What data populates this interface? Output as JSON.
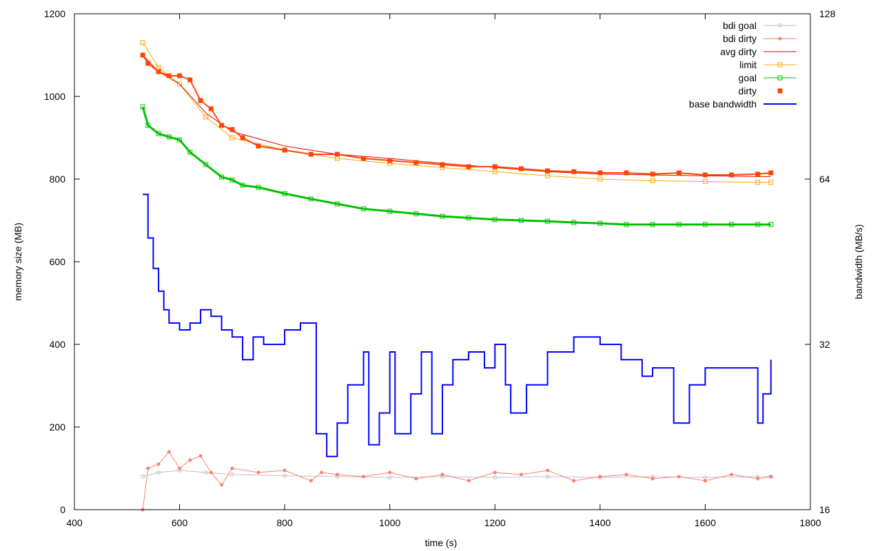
{
  "chart_data": {
    "type": "line",
    "title": "",
    "xlabel": "time (s)",
    "ylabel": "memory size (MB)",
    "y2label": "bandwidth (MB/s)",
    "xlim": [
      400,
      1800
    ],
    "ylim": [
      0,
      1200
    ],
    "y2lim": [
      16,
      128
    ],
    "y2scale": "log2",
    "xticks": [
      400,
      600,
      800,
      1000,
      1200,
      1400,
      1600,
      1800
    ],
    "yticks": [
      0,
      200,
      400,
      600,
      800,
      1000,
      1200
    ],
    "y2ticks": [
      16,
      32,
      64,
      128
    ],
    "grid": false,
    "legend_position": "top-right",
    "series": [
      {
        "name": "bdi goal",
        "axis": "left",
        "color": "#c0c0c0",
        "marker": "circle-open",
        "x": [
          530,
          560,
          600,
          650,
          700,
          800,
          900,
          1000,
          1100,
          1200,
          1300,
          1400,
          1500,
          1600,
          1700,
          1725
        ],
        "y": [
          80,
          90,
          95,
          90,
          85,
          82,
          80,
          78,
          80,
          78,
          80,
          78,
          80,
          78,
          80,
          80
        ]
      },
      {
        "name": "bdi dirty",
        "axis": "left",
        "color": "#fa8072",
        "marker": "circle",
        "x": [
          530,
          540,
          560,
          580,
          600,
          620,
          640,
          660,
          680,
          700,
          750,
          800,
          850,
          870,
          900,
          950,
          1000,
          1050,
          1100,
          1150,
          1200,
          1250,
          1300,
          1350,
          1400,
          1450,
          1500,
          1550,
          1600,
          1650,
          1700,
          1725
        ],
        "y": [
          0,
          100,
          110,
          140,
          100,
          120,
          130,
          90,
          60,
          100,
          90,
          95,
          70,
          90,
          85,
          80,
          90,
          75,
          85,
          70,
          90,
          85,
          95,
          70,
          80,
          85,
          75,
          80,
          70,
          85,
          75,
          80
        ]
      },
      {
        "name": "avg dirty",
        "axis": "left",
        "color": "#dd0000",
        "marker": "none",
        "x": [
          530,
          560,
          600,
          650,
          700,
          800,
          900,
          1000,
          1100,
          1200,
          1300,
          1400,
          1500,
          1600,
          1700,
          1725
        ],
        "y": [
          1100,
          1060,
          1030,
          960,
          915,
          880,
          860,
          850,
          838,
          828,
          818,
          812,
          810,
          808,
          806,
          806
        ]
      },
      {
        "name": "limit",
        "axis": "left",
        "color": "#ffa500",
        "marker": "square-open",
        "x": [
          530,
          560,
          600,
          650,
          700,
          800,
          900,
          1000,
          1100,
          1200,
          1300,
          1400,
          1500,
          1600,
          1700,
          1725
        ],
        "y": [
          1130,
          1070,
          1030,
          950,
          900,
          870,
          850,
          838,
          828,
          818,
          808,
          800,
          796,
          794,
          792,
          792
        ]
      },
      {
        "name": "goal",
        "axis": "left",
        "color": "#00c000",
        "marker": "square-open",
        "x": [
          530,
          540,
          560,
          580,
          600,
          620,
          650,
          680,
          700,
          720,
          750,
          800,
          850,
          900,
          950,
          1000,
          1050,
          1100,
          1150,
          1200,
          1250,
          1300,
          1350,
          1400,
          1450,
          1500,
          1550,
          1600,
          1650,
          1700,
          1725
        ],
        "y": [
          975,
          930,
          910,
          902,
          895,
          865,
          835,
          805,
          798,
          785,
          780,
          765,
          752,
          740,
          728,
          722,
          716,
          710,
          706,
          702,
          700,
          698,
          695,
          693,
          690,
          690,
          690,
          690,
          690,
          690,
          690
        ]
      },
      {
        "name": "dirty",
        "axis": "left",
        "color": "#ff4500",
        "marker": "square",
        "x": [
          530,
          540,
          560,
          580,
          600,
          620,
          640,
          660,
          680,
          700,
          720,
          750,
          800,
          850,
          900,
          950,
          1000,
          1050,
          1100,
          1150,
          1200,
          1250,
          1300,
          1350,
          1400,
          1450,
          1500,
          1550,
          1600,
          1650,
          1700,
          1725
        ],
        "y": [
          1100,
          1080,
          1060,
          1050,
          1050,
          1040,
          990,
          970,
          930,
          920,
          900,
          880,
          870,
          860,
          860,
          850,
          845,
          840,
          835,
          830,
          830,
          825,
          820,
          818,
          815,
          815,
          812,
          815,
          810,
          810,
          812,
          815
        ]
      },
      {
        "name": "base bandwidth",
        "axis": "right",
        "color": "#0000ff",
        "marker": "none",
        "x": [
          530,
          540,
          550,
          560,
          570,
          580,
          600,
          620,
          640,
          660,
          680,
          700,
          720,
          740,
          760,
          800,
          830,
          855,
          860,
          880,
          900,
          920,
          950,
          960,
          980,
          1000,
          1010,
          1040,
          1060,
          1080,
          1100,
          1120,
          1150,
          1180,
          1200,
          1220,
          1230,
          1260,
          1300,
          1350,
          1400,
          1440,
          1480,
          1500,
          1530,
          1540,
          1570,
          1600,
          1650,
          1690,
          1700,
          1710,
          1725
        ],
        "y": [
          60,
          50,
          44,
          40,
          37,
          35,
          34,
          35,
          37,
          36,
          34,
          33,
          30,
          33,
          32,
          34,
          35,
          35,
          22,
          20,
          23,
          27,
          31,
          21,
          24,
          31,
          22,
          26,
          31,
          22,
          27,
          30,
          31,
          29,
          32,
          27,
          24,
          27,
          31,
          33,
          32,
          30,
          28,
          29,
          29,
          23,
          27,
          29,
          29,
          29,
          23,
          26,
          30
        ]
      }
    ]
  }
}
